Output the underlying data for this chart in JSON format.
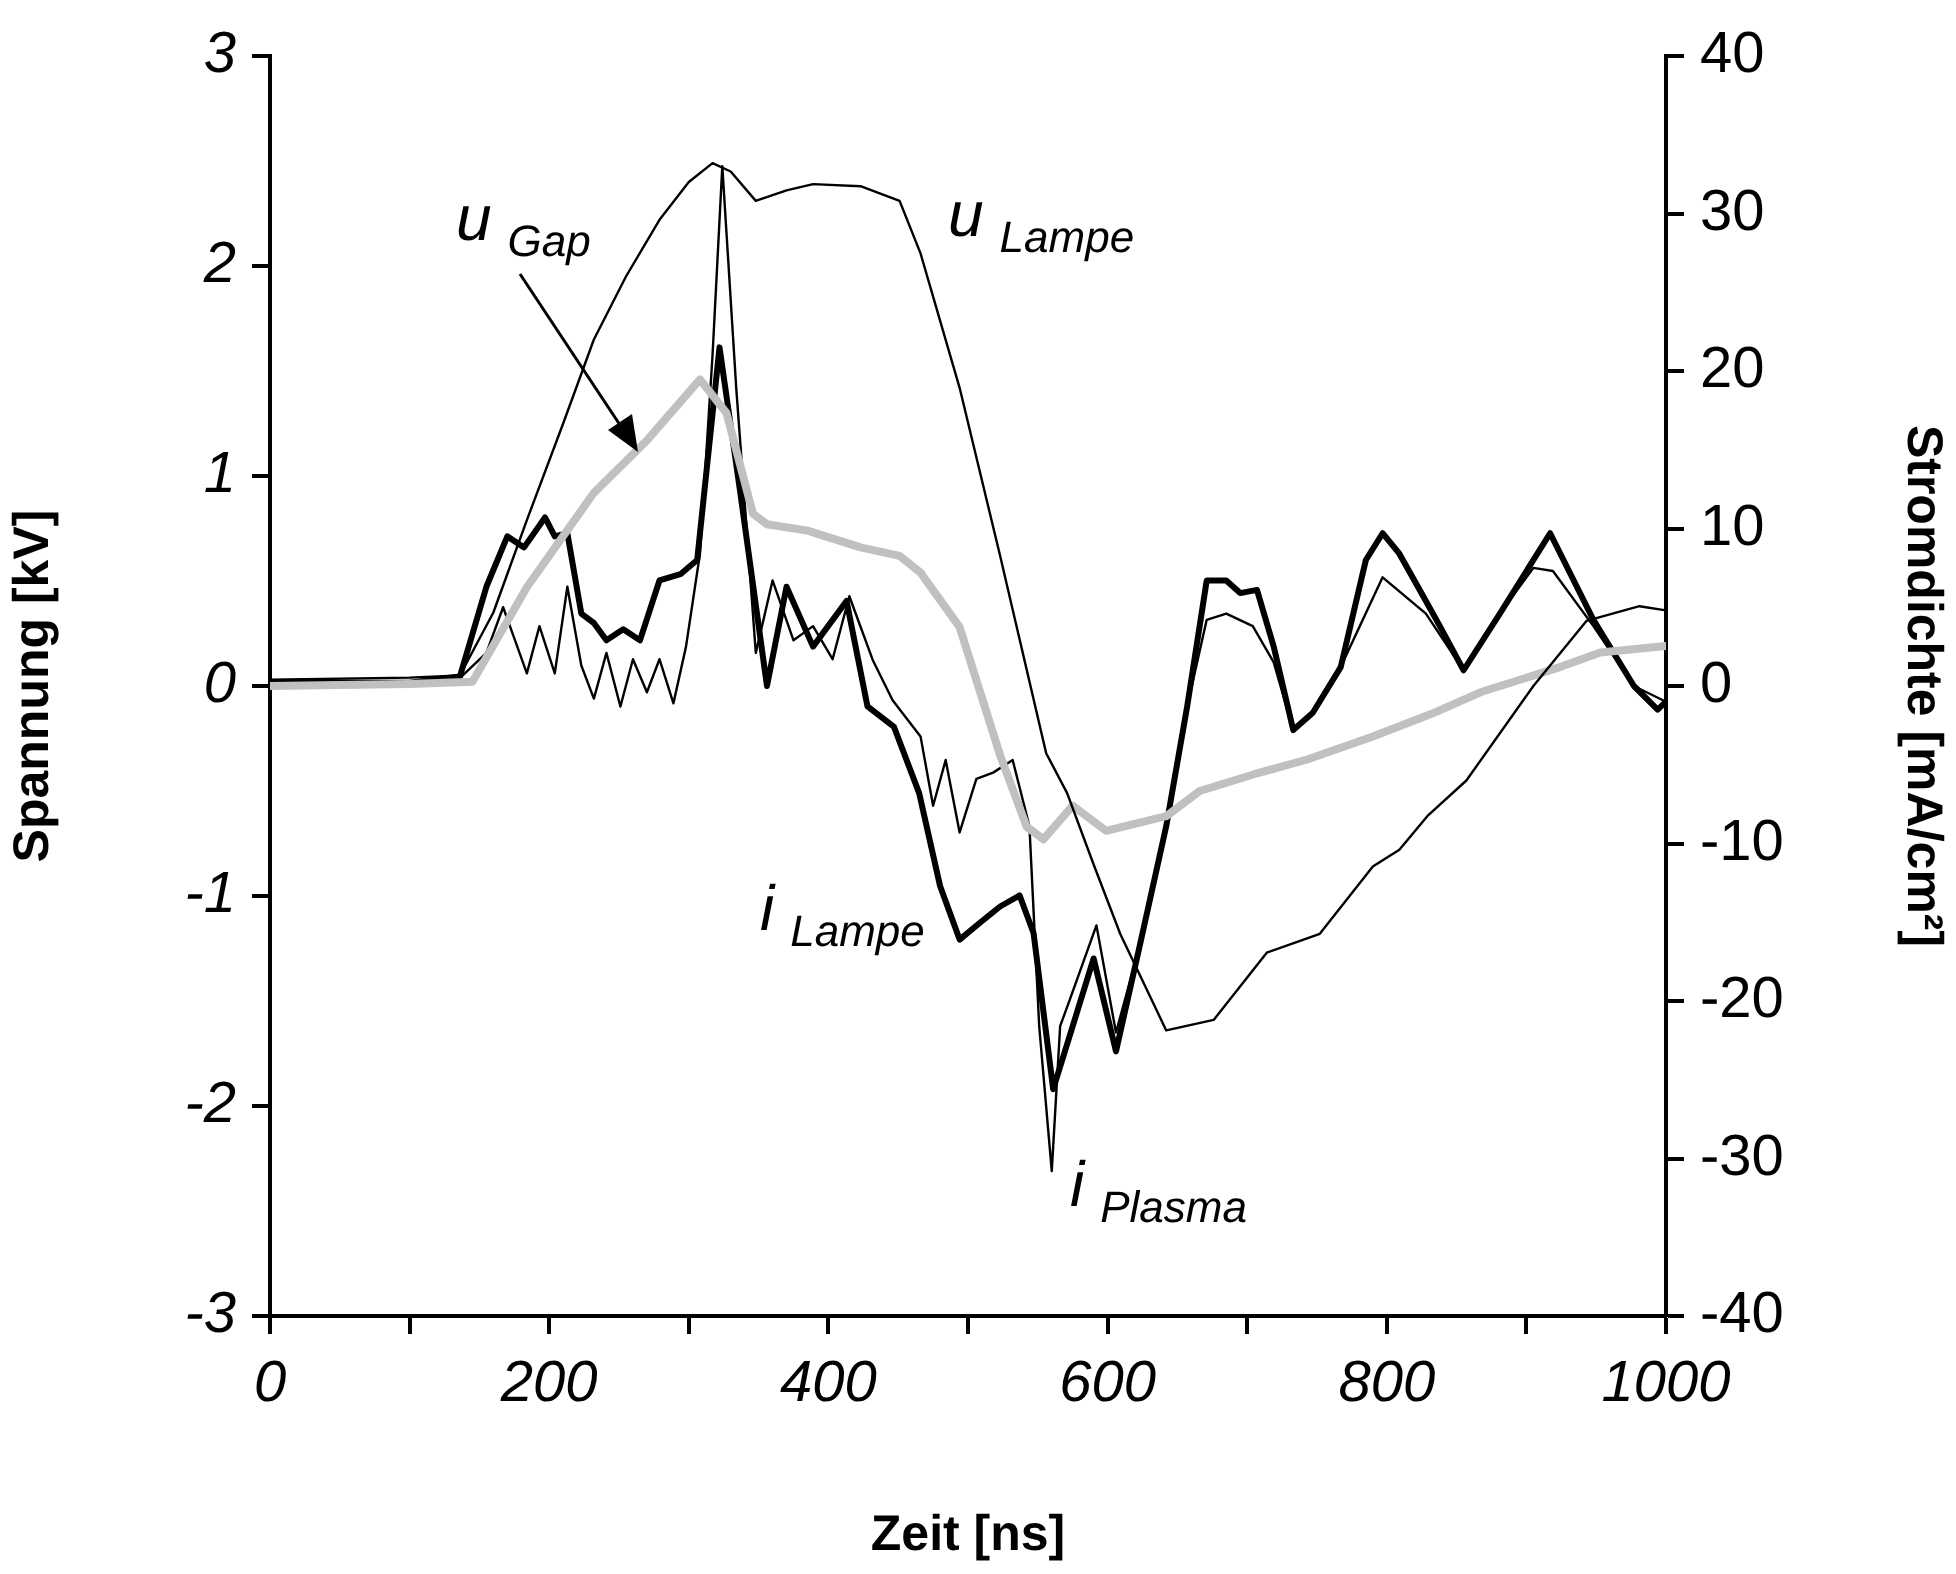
{
  "chart_data": {
    "type": "line",
    "xlabel": "Zeit [ns]",
    "ylabel": "Spannung [kV]",
    "y2label": "Stromdichte [mA/cm²]",
    "xlim": [
      0,
      1000
    ],
    "xticks": [
      0,
      {
        "value": 100,
        "label": null
      },
      200,
      {
        "value": 300,
        "label": null
      },
      400,
      {
        "value": 500,
        "label": null
      },
      600,
      {
        "value": 700,
        "label": null
      },
      800,
      {
        "value": 900,
        "label": null
      },
      1000
    ],
    "ylim": [
      -3,
      3
    ],
    "yticks": [
      -3,
      -2,
      -1,
      0,
      1,
      2,
      3
    ],
    "y2lim": [
      -40,
      40
    ],
    "y2ticks": [
      -40,
      -30,
      -20,
      -10,
      0,
      10,
      20,
      30,
      40
    ],
    "marker": "none",
    "legend": false,
    "series": [
      {
        "name": "u$_{Lampe}$",
        "color": "#000000",
        "x": [
          0,
          100,
          136,
          160,
          184,
          210,
          232,
          255,
          279,
          300,
          317,
          330,
          348,
          370,
          389,
          423,
          451,
          466,
          494,
          523,
          556,
          571,
          590,
          609,
          642,
          676,
          714,
          752,
          790,
          809,
          829,
          857,
          905,
          943,
          981,
          1000
        ],
        "values": [
          0.03,
          0.04,
          0.05,
          0.35,
          0.79,
          1.25,
          1.65,
          1.95,
          2.22,
          2.4,
          2.49,
          2.45,
          2.31,
          2.36,
          2.39,
          2.38,
          2.31,
          2.06,
          1.42,
          0.62,
          -0.32,
          -0.51,
          -0.85,
          -1.18,
          -1.64,
          -1.59,
          -1.27,
          -1.18,
          -0.86,
          -0.78,
          -0.62,
          -0.45,
          0.0,
          0.31,
          0.38,
          0.36
        ]
      },
      {
        "name": "u$_{Gap}$",
        "color": "#c0c0c0",
        "x": [
          0,
          100,
          145,
          184,
          232,
          270,
          308,
          327,
          346,
          356,
          385,
          423,
          451,
          466,
          494,
          523,
          542,
          554,
          575,
          599,
          642,
          666,
          705,
          743,
          790,
          833,
          867,
          924,
          953,
          1000
        ],
        "values": [
          0.0,
          0.01,
          0.02,
          0.47,
          0.92,
          1.17,
          1.46,
          1.3,
          0.82,
          0.77,
          0.74,
          0.66,
          0.62,
          0.54,
          0.28,
          -0.33,
          -0.67,
          -0.73,
          -0.57,
          -0.69,
          -0.62,
          -0.5,
          -0.42,
          -0.35,
          -0.24,
          -0.13,
          -0.03,
          0.09,
          0.16,
          0.19
        ]
      },
      {
        "name": "i$_{Lampe}$",
        "color": "#000000",
        "axis": "y2",
        "x": [
          0,
          100,
          136,
          155,
          170,
          182,
          197,
          204,
          213,
          223,
          232,
          241,
          253,
          265,
          279,
          294,
          306,
          322,
          337,
          356,
          370,
          389,
          413,
          428,
          447,
          465,
          480,
          494,
          509,
          523,
          537,
          547,
          561,
          575,
          590,
          606,
          623,
          642,
          657,
          671,
          685,
          695,
          707,
          719,
          733,
          747,
          767,
          785,
          797,
          809,
          828,
          838,
          855,
          881,
          917,
          948,
          977,
          994,
          1000
        ],
        "values": [
          0.2,
          0.2,
          0.6,
          6.3,
          9.5,
          8.8,
          10.7,
          9.5,
          9.7,
          4.6,
          4.0,
          2.9,
          3.6,
          2.9,
          6.7,
          7.1,
          8.0,
          21.5,
          12.2,
          0,
          6.3,
          2.5,
          5.4,
          -1.3,
          -2.6,
          -6.8,
          -12.7,
          -16.1,
          -15,
          -14,
          -13.3,
          -15.7,
          -25.6,
          -21.6,
          -17.3,
          -23.2,
          -16.5,
          -8.9,
          -1.3,
          6.7,
          6.7,
          5.9,
          6.1,
          2.5,
          -2.8,
          -1.7,
          1.2,
          8,
          9.7,
          8.4,
          5.4,
          3.8,
          1.0,
          4.6,
          9.7,
          4.2,
          0,
          -1.5,
          -1.0
        ]
      },
      {
        "name": "i$_{Plasma}$",
        "color": "#000000",
        "axis": "y2",
        "x": [
          0,
          100,
          136,
          155,
          167,
          184,
          193,
          204,
          213,
          223,
          232,
          241,
          251,
          260,
          270,
          279,
          289,
          298,
          308,
          317,
          324,
          334,
          348,
          360,
          375,
          389,
          403,
          415,
          432,
          446,
          466,
          475,
          484,
          494,
          506,
          518,
          532,
          544,
          551,
          560,
          566,
          573,
          592,
          606,
          623,
          642,
          657,
          671,
          685,
          704,
          719,
          733,
          747,
          767,
          797,
          828,
          855,
          881,
          905,
          919,
          948,
          977,
          1000
        ],
        "values": [
          0.2,
          0.2,
          0.5,
          2.1,
          5.0,
          0.8,
          3.8,
          0.8,
          6.3,
          1.3,
          -0.8,
          2.1,
          -1.3,
          1.7,
          -0.4,
          1.7,
          -1.1,
          2.5,
          8.4,
          21,
          33,
          18.9,
          2.1,
          6.7,
          2.9,
          3.8,
          1.7,
          5.7,
          1.6,
          -0.9,
          -3.2,
          -7.6,
          -4.7,
          -9.3,
          -5.9,
          -5.5,
          -4.7,
          -8.9,
          -21.6,
          -30.8,
          -21.6,
          -19.9,
          -15.2,
          -22,
          -16.5,
          -8.9,
          -1.3,
          4.2,
          4.6,
          3.8,
          1.5,
          -2.8,
          -1.7,
          1.2,
          6.9,
          4.6,
          1.0,
          4.6,
          7.5,
          7.3,
          3.8,
          0,
          -1.0
        ]
      }
    ]
  }
}
